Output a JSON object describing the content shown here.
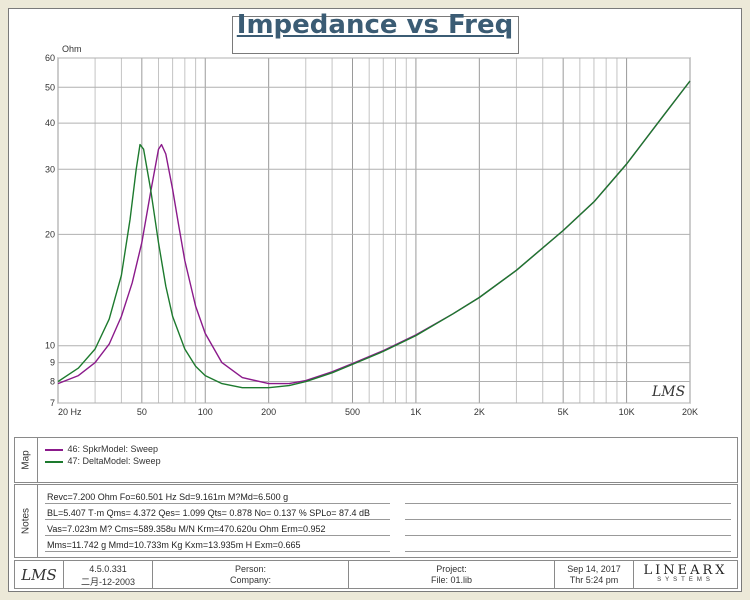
{
  "chart_data": {
    "type": "line",
    "title": "Impedance vs Freq",
    "ylabel": "Ohm",
    "y_scale": "log",
    "x_scale": "log",
    "xlim": [
      20,
      20000
    ],
    "ylim": [
      7,
      60
    ],
    "x_ticks": [
      {
        "v": 20,
        "label": "20  Hz"
      },
      {
        "v": 50,
        "label": "50"
      },
      {
        "v": 100,
        "label": "100"
      },
      {
        "v": 200,
        "label": "200"
      },
      {
        "v": 500,
        "label": "500"
      },
      {
        "v": 1000,
        "label": "1K"
      },
      {
        "v": 2000,
        "label": "2K"
      },
      {
        "v": 5000,
        "label": "5K"
      },
      {
        "v": 10000,
        "label": "10K"
      },
      {
        "v": 20000,
        "label": "20K"
      }
    ],
    "y_ticks": [
      {
        "v": 7,
        "label": "7"
      },
      {
        "v": 8,
        "label": "8"
      },
      {
        "v": 9,
        "label": "9"
      },
      {
        "v": 10,
        "label": "10"
      },
      {
        "v": 20,
        "label": "20"
      },
      {
        "v": 30,
        "label": "30"
      },
      {
        "v": 40,
        "label": "40"
      },
      {
        "v": 50,
        "label": "50"
      },
      {
        "v": 60,
        "label": "60"
      }
    ],
    "grid": true,
    "series": [
      {
        "name": "46: SpkrModel: Sweep",
        "color": "#8b1a8b",
        "points": [
          [
            20,
            7.9
          ],
          [
            25,
            8.3
          ],
          [
            30,
            9.0
          ],
          [
            35,
            10.1
          ],
          [
            40,
            12.0
          ],
          [
            45,
            14.8
          ],
          [
            50,
            19.0
          ],
          [
            55,
            26.0
          ],
          [
            60,
            34.0
          ],
          [
            62,
            35.0
          ],
          [
            65,
            33.0
          ],
          [
            70,
            26.5
          ],
          [
            75,
            21.0
          ],
          [
            80,
            17.0
          ],
          [
            90,
            12.8
          ],
          [
            100,
            10.8
          ],
          [
            120,
            9.0
          ],
          [
            150,
            8.2
          ],
          [
            200,
            7.9
          ],
          [
            250,
            7.9
          ],
          [
            300,
            8.05
          ],
          [
            400,
            8.5
          ],
          [
            500,
            8.95
          ],
          [
            700,
            9.7
          ],
          [
            1000,
            10.7
          ],
          [
            1500,
            12.2
          ],
          [
            2000,
            13.5
          ],
          [
            3000,
            16.0
          ],
          [
            5000,
            20.5
          ],
          [
            7000,
            24.5
          ],
          [
            10000,
            31.0
          ],
          [
            15000,
            42.0
          ],
          [
            20000,
            52.0
          ]
        ]
      },
      {
        "name": "47: DeltaModel: Sweep",
        "color": "#1d7a2e",
        "points": [
          [
            20,
            8.0
          ],
          [
            25,
            8.7
          ],
          [
            30,
            9.8
          ],
          [
            35,
            11.8
          ],
          [
            40,
            15.5
          ],
          [
            44,
            22.0
          ],
          [
            47,
            30.0
          ],
          [
            49,
            35.0
          ],
          [
            51,
            34.0
          ],
          [
            55,
            26.5
          ],
          [
            60,
            19.0
          ],
          [
            65,
            14.5
          ],
          [
            70,
            12.0
          ],
          [
            80,
            9.8
          ],
          [
            90,
            8.8
          ],
          [
            100,
            8.3
          ],
          [
            120,
            7.9
          ],
          [
            150,
            7.7
          ],
          [
            200,
            7.7
          ],
          [
            250,
            7.8
          ],
          [
            300,
            8.0
          ],
          [
            400,
            8.45
          ],
          [
            500,
            8.9
          ],
          [
            700,
            9.65
          ],
          [
            1000,
            10.65
          ],
          [
            1500,
            12.2
          ],
          [
            2000,
            13.5
          ],
          [
            3000,
            16.0
          ],
          [
            5000,
            20.5
          ],
          [
            7000,
            24.5
          ],
          [
            10000,
            31.0
          ],
          [
            15000,
            42.0
          ],
          [
            20000,
            52.0
          ]
        ]
      }
    ]
  },
  "map": {
    "label": "Map",
    "entries": [
      {
        "label": "46: SpkrModel: Sweep",
        "color": "#8b1a8b"
      },
      {
        "label": "47: DeltaModel: Sweep",
        "color": "#1d7a2e"
      }
    ]
  },
  "notes": {
    "label": "Notes",
    "rows": [
      "Revc=7.200 Ohm  Fo=60.501 Hz  Sd=9.161m M?Md=6.500 g",
      "BL=5.407 T·m  Qms= 4.372  Qes= 1.099  Qts= 0.878  No= 0.137 %  SPLo= 87.4 dB",
      "Vas=7.023m M? Cms=589.358u M/N  Krm=470.620u Ohm  Erm=0.952",
      "Mms=11.742 g  Mmd=10.733m Kg  Kxm=13.935m H  Exm=0.665"
    ]
  },
  "footer": {
    "logo": "LMS",
    "version": "4.5.0.331",
    "version_date": "二月-12-2003",
    "person_label": "Person:",
    "company_label": "Company:",
    "project_label": "Project:",
    "file_label": "File: 01.lib",
    "date": "Sep 14, 2017",
    "time": "Thr  5:24 pm",
    "brand": "LINEARX",
    "brand_sub": "SYSTEMS"
  },
  "watermark": "LMS"
}
